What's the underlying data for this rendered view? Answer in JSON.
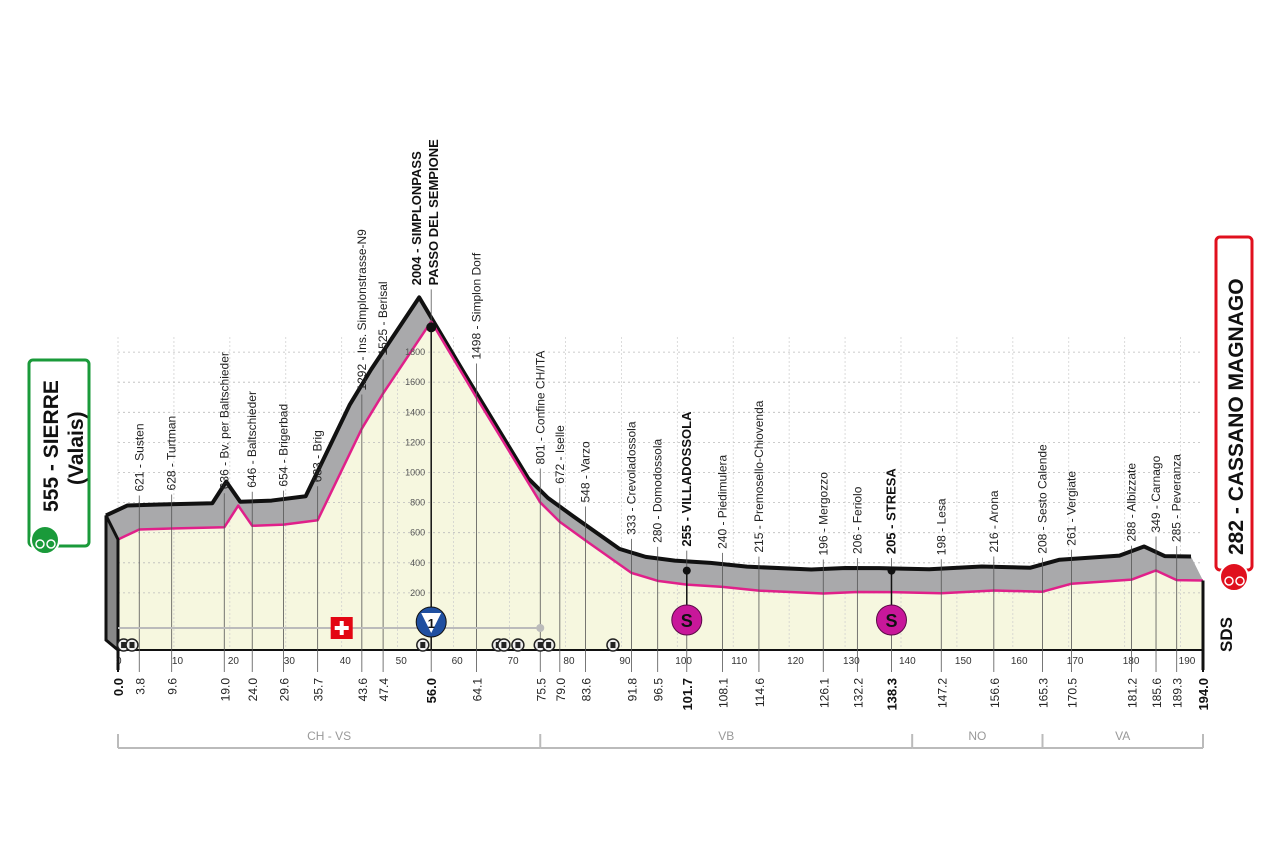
{
  "chart_data": {
    "type": "area",
    "xlabel": "",
    "ylabel": "",
    "xlim": [
      0,
      194
    ],
    "ylim": [
      0,
      2000
    ],
    "x_ticks": [
      0,
      10,
      20,
      30,
      40,
      50,
      60,
      70,
      80,
      90,
      100,
      110,
      120,
      130,
      140,
      150,
      160,
      170,
      180,
      190
    ],
    "y_ticks": [
      200,
      400,
      600,
      800,
      1000,
      1200,
      1400,
      1600,
      1800
    ],
    "grid": true,
    "start": {
      "km": "0.0",
      "altitude": "555",
      "name": "SIERRE",
      "sub": "(Valais)",
      "color": "#1a9a3a"
    },
    "finish": {
      "km": "194.0",
      "altitude": "282",
      "name": "CASSANO MAGNAGO",
      "color": "#e0101e"
    },
    "waypoints": [
      {
        "km": 0.0,
        "km_label": "0.0",
        "alt": 555,
        "label": "",
        "bold": true
      },
      {
        "km": 3.8,
        "km_label": "3.8",
        "alt": 621,
        "label": "621 - Susten"
      },
      {
        "km": 9.6,
        "km_label": "9.6",
        "alt": 628,
        "label": "628 - Turtman"
      },
      {
        "km": 19.0,
        "km_label": "19.0",
        "alt": 636,
        "label": "636 - Bv. per Baltschieder"
      },
      {
        "km": 24.0,
        "km_label": "24.0",
        "alt": 646,
        "label": "646 - Baltschieder"
      },
      {
        "km": 29.6,
        "km_label": "29.6",
        "alt": 654,
        "label": "654 - Brigerbad"
      },
      {
        "km": 35.7,
        "km_label": "35.7",
        "alt": 683,
        "label": "683 - Brig"
      },
      {
        "km": 43.6,
        "km_label": "43.6",
        "alt": 1292,
        "label": "1292 - Ins. Simplonstrasse-N9"
      },
      {
        "km": 47.4,
        "km_label": "47.4",
        "alt": 1525,
        "label": "1525 - Berisal"
      },
      {
        "km": 56.0,
        "km_label": "56.0",
        "alt": 2004,
        "label": "2004 - SIMPLONPASS",
        "label2": "PASSO DEL SEMPIONE",
        "bold": true
      },
      {
        "km": 64.1,
        "km_label": "64.1",
        "alt": 1498,
        "label": "1498 - Simplon Dorf"
      },
      {
        "km": 75.5,
        "km_label": "75.5",
        "alt": 801,
        "label": "801 - Confine CH/ITA"
      },
      {
        "km": 79.0,
        "km_label": "79.0",
        "alt": 672,
        "label": "672 - Iselle"
      },
      {
        "km": 83.6,
        "km_label": "83.6",
        "alt": 548,
        "label": "548 - Varzo"
      },
      {
        "km": 91.8,
        "km_label": "91.8",
        "alt": 333,
        "label": "333 - Crevoladossola"
      },
      {
        "km": 96.5,
        "km_label": "96.5",
        "alt": 280,
        "label": "280 - Domodossola"
      },
      {
        "km": 101.7,
        "km_label": "101.7",
        "alt": 255,
        "label": "255 - VILLADOSSOLA",
        "bold": true
      },
      {
        "km": 108.1,
        "km_label": "108.1",
        "alt": 240,
        "label": "240 - Piedimulera"
      },
      {
        "km": 114.6,
        "km_label": "114.6",
        "alt": 215,
        "label": "215 - Premosello-Chiovenda"
      },
      {
        "km": 126.1,
        "km_label": "126.1",
        "alt": 196,
        "label": "196 - Mergozzo"
      },
      {
        "km": 132.2,
        "km_label": "132.2",
        "alt": 206,
        "label": "206 - Feriolo"
      },
      {
        "km": 138.3,
        "km_label": "138.3",
        "alt": 205,
        "label": "205 - STRESA",
        "bold": true
      },
      {
        "km": 147.2,
        "km_label": "147.2",
        "alt": 198,
        "label": "198 - Lesa"
      },
      {
        "km": 156.6,
        "km_label": "156.6",
        "alt": 216,
        "label": "216 - Arona"
      },
      {
        "km": 165.3,
        "km_label": "165.3",
        "alt": 208,
        "label": "208 - Sesto Calende"
      },
      {
        "km": 170.5,
        "km_label": "170.5",
        "alt": 261,
        "label": "261 - Vergiate"
      },
      {
        "km": 181.2,
        "km_label": "181.2",
        "alt": 288,
        "label": "288 - Albizzate"
      },
      {
        "km": 185.6,
        "km_label": "185.6",
        "alt": 349,
        "label": "349 - Carnago"
      },
      {
        "km": 189.3,
        "km_label": "189.3",
        "alt": 285,
        "label": "285 - Peveranza"
      },
      {
        "km": 194.0,
        "km_label": "194.0",
        "alt": 282,
        "label": "",
        "bold": true
      }
    ],
    "regions": [
      {
        "name": "CH - VS",
        "from": 0,
        "to": 75.5
      },
      {
        "name": "VB",
        "from": 75.5,
        "to": 142
      },
      {
        "name": "NO",
        "from": 142,
        "to": 165.3
      },
      {
        "name": "VA",
        "from": 165.3,
        "to": 194
      }
    ],
    "markers": {
      "kom": {
        "km": 56.0,
        "label": "1",
        "color": "#1f4fa0"
      },
      "sprints": [
        {
          "km": 101.7,
          "label": "S"
        },
        {
          "km": 138.3,
          "label": "S"
        }
      ],
      "border_flag_km": 40,
      "tunnels_km": [
        1,
        2.5,
        54.5,
        68,
        69,
        71.5,
        75.5,
        77,
        88.5
      ]
    },
    "colors": {
      "profile_line": "#e0208a",
      "fill": "#f6f7df",
      "band": "#a9a9ab",
      "sprint": "#c8179a"
    }
  },
  "logo": "SDS"
}
